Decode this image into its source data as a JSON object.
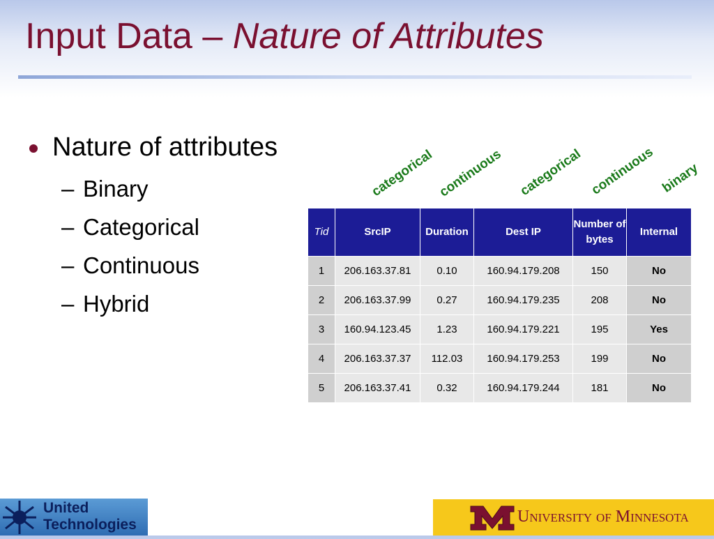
{
  "title": {
    "plain": "Input Data – ",
    "italic": "Nature of Attributes"
  },
  "bullets": {
    "main": "Nature of attributes",
    "marker": "–",
    "subs": [
      "Binary",
      "Categorical",
      "Continuous",
      "Hybrid"
    ]
  },
  "attribute_types": [
    "categorical",
    "continuous",
    "categorical",
    "continuous",
    "binary"
  ],
  "table": {
    "header": [
      "Tid",
      "SrcIP",
      "Duration",
      "Dest IP",
      "Number of bytes",
      "Internal"
    ],
    "rows": [
      [
        "1",
        "206.163.37.81",
        "0.10",
        "160.94.179.208",
        "150",
        "No"
      ],
      [
        "2",
        "206.163.37.99",
        "0.27",
        "160.94.179.235",
        "208",
        "No"
      ],
      [
        "3",
        "160.94.123.45",
        "1.23",
        "160.94.179.221",
        "195",
        "Yes"
      ],
      [
        "4",
        "206.163.37.37",
        "112.03",
        "160.94.179.253",
        "199",
        "No"
      ],
      [
        "5",
        "206.163.37.41",
        "0.32",
        "160.94.179.244",
        "181",
        "No"
      ]
    ]
  },
  "footer": {
    "left": "United Technologies",
    "right": "University of Minnesota"
  }
}
